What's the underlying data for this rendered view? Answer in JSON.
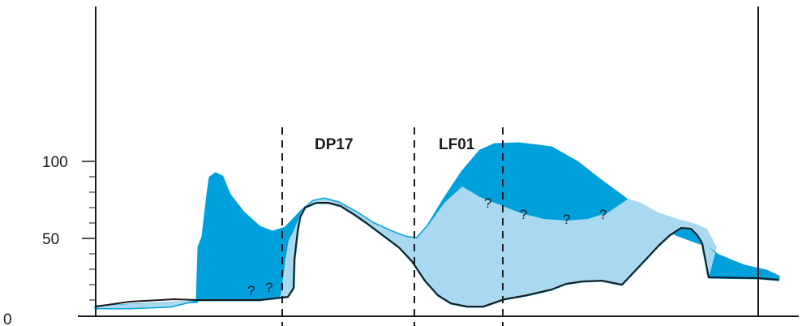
{
  "axis": {
    "y_ticks": [
      {
        "value": 0,
        "label": "0"
      },
      {
        "value": 50,
        "label": "50"
      },
      {
        "value": 100,
        "label": "100"
      }
    ]
  },
  "zones": [
    {
      "label": "DP17"
    },
    {
      "label": "LF01"
    }
  ],
  "question_mark": "?",
  "colors": {
    "dark_fill": "#00a0dc",
    "light_fill": "#a9d9f1",
    "line": "#1a1a1a",
    "background": "#ffffff"
  }
}
